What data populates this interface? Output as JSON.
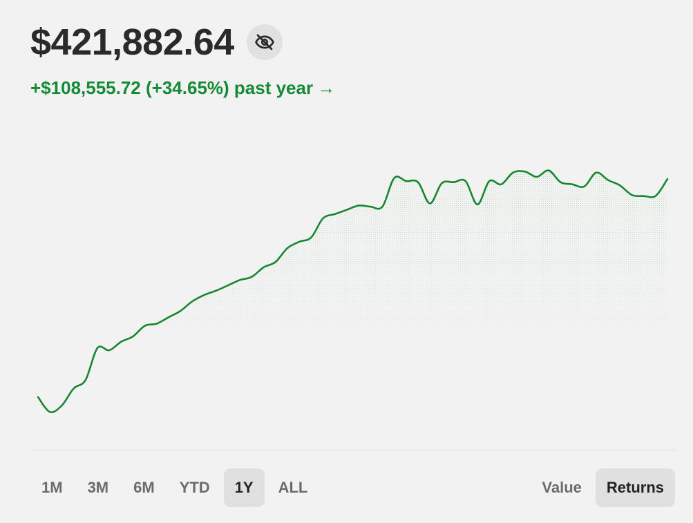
{
  "portfolio": {
    "balance": "$421,882.64",
    "change_text": "+$108,555.72 (+34.65%) past year",
    "change_arrow": "→",
    "hide_icon": "eye-off-icon"
  },
  "colors": {
    "positive": "#158a36",
    "line": "#17872f",
    "background": "#f2f2f2",
    "active_button": "#e0e0e0"
  },
  "chart_data": {
    "type": "line",
    "series": [
      {
        "values": [
          310,
          296,
          302,
          318,
          326,
          356,
          354,
          362,
          367,
          377,
          379,
          385,
          391,
          400,
          406,
          410,
          415,
          420,
          423,
          432,
          437,
          450,
          456,
          460,
          478,
          482,
          486,
          490,
          489,
          489,
          516,
          513,
          512,
          492,
          511,
          512,
          513,
          491,
          513,
          510,
          521,
          522,
          517,
          523,
          512,
          510,
          508,
          521,
          514,
          509,
          500,
          499,
          499,
          515
        ]
      }
    ],
    "grid": false,
    "legend": false
  },
  "ranges": [
    {
      "label": "1M",
      "active": false
    },
    {
      "label": "3M",
      "active": false
    },
    {
      "label": "6M",
      "active": false
    },
    {
      "label": "YTD",
      "active": false
    },
    {
      "label": "1Y",
      "active": true
    },
    {
      "label": "ALL",
      "active": false
    }
  ],
  "modes": [
    {
      "label": "Value",
      "active": false
    },
    {
      "label": "Returns",
      "active": true
    }
  ]
}
